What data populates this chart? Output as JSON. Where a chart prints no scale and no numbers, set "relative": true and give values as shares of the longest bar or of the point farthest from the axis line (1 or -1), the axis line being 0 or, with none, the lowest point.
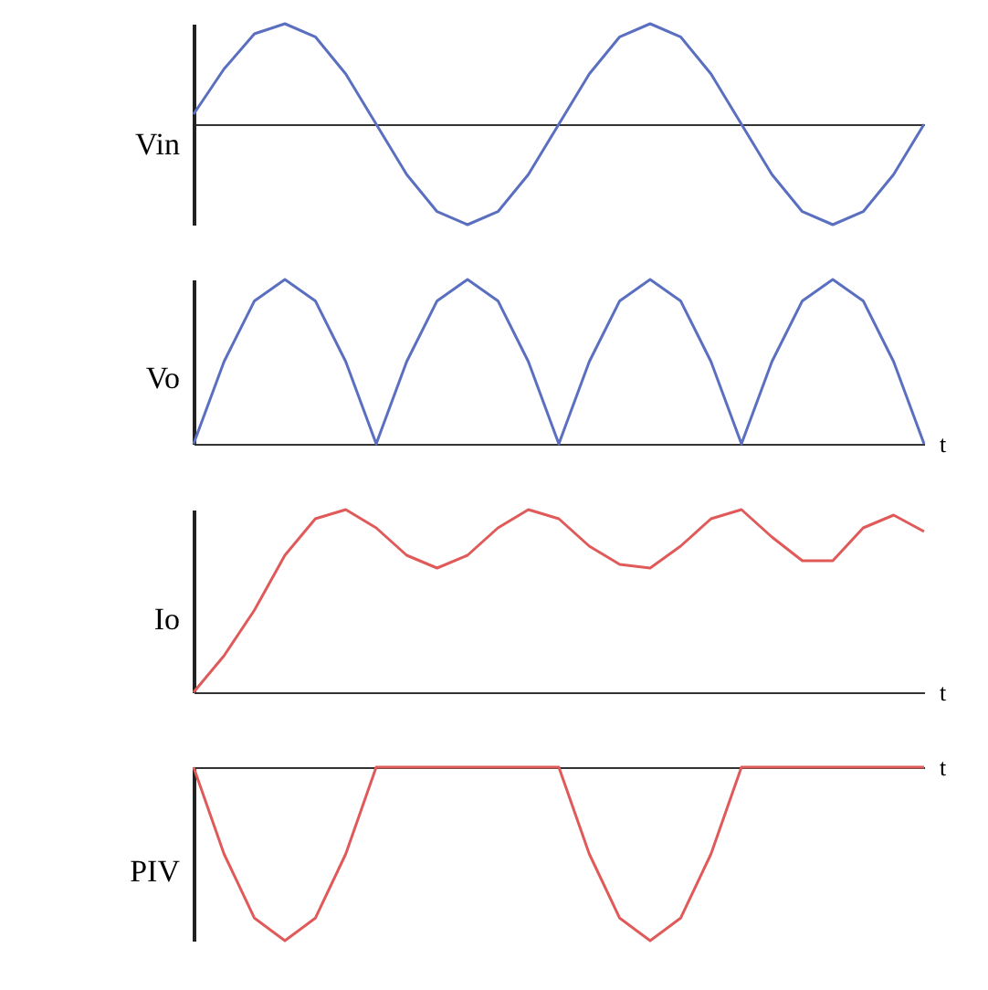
{
  "chart_data": [
    {
      "type": "line",
      "relative": true,
      "ylabel": "Vin",
      "categories": [
        null,
        null,
        null,
        null,
        null,
        null,
        null,
        null,
        null,
        null,
        null,
        null,
        null,
        null,
        null,
        null,
        null,
        null,
        null,
        null,
        null,
        null,
        null,
        null,
        null
      ],
      "series": [
        {
          "color": "#5a6fc0",
          "values": [
            0.1,
            0.55,
            0.9,
            1,
            0.87,
            0.5,
            0,
            -0.5,
            -0.87,
            -1,
            -0.87,
            -0.5,
            0,
            0.5,
            0.87,
            1,
            0.87,
            0.5,
            0,
            -0.5,
            -0.87,
            -1,
            -0.87,
            -0.5,
            0
          ]
        }
      ]
    },
    {
      "type": "line",
      "relative": true,
      "ylabel": "Vo",
      "xlabel": "t",
      "categories": [
        null,
        null,
        null,
        null,
        null,
        null,
        null,
        null,
        null,
        null,
        null,
        null,
        null,
        null,
        null,
        null,
        null,
        null,
        null,
        null,
        null,
        null,
        null,
        null,
        null
      ],
      "series": [
        {
          "color": "#5a6fc0",
          "values": [
            0,
            0.5,
            0.87,
            1,
            0.87,
            0.5,
            0,
            0.5,
            0.87,
            1,
            0.87,
            0.5,
            0,
            0.5,
            0.87,
            1,
            0.87,
            0.5,
            0,
            0.5,
            0.87,
            1,
            0.87,
            0.5,
            0
          ]
        }
      ]
    },
    {
      "type": "line",
      "relative": true,
      "ylabel": "Io",
      "xlabel": "t",
      "categories": [
        null,
        null,
        null,
        null,
        null,
        null,
        null,
        null,
        null,
        null,
        null,
        null,
        null,
        null,
        null,
        null,
        null,
        null,
        null,
        null,
        null,
        null,
        null,
        null,
        null
      ],
      "series": [
        {
          "color": "#e05a5a",
          "values": [
            0,
            0.2,
            0.45,
            0.75,
            0.95,
            1,
            0.9,
            0.75,
            0.68,
            0.75,
            0.9,
            1,
            0.95,
            0.8,
            0.7,
            0.68,
            0.8,
            0.95,
            1,
            0.85,
            0.72,
            0.72,
            0.9,
            0.97,
            0.88
          ]
        }
      ]
    },
    {
      "type": "line",
      "relative": true,
      "ylabel": "PIV",
      "xlabel": "t",
      "categories": [
        null,
        null,
        null,
        null,
        null,
        null,
        null,
        null,
        null,
        null,
        null,
        null,
        null,
        null,
        null,
        null,
        null,
        null,
        null,
        null,
        null,
        null,
        null,
        null,
        null
      ],
      "series": [
        {
          "color": "#e05a5a",
          "values": [
            0,
            -0.5,
            -0.87,
            -1,
            -0.87,
            -0.5,
            0,
            0,
            0,
            0,
            0,
            0,
            0,
            -0.5,
            -0.87,
            -1,
            -0.87,
            -0.5,
            0,
            0,
            0,
            0,
            0,
            0,
            0
          ]
        }
      ]
    }
  ]
}
